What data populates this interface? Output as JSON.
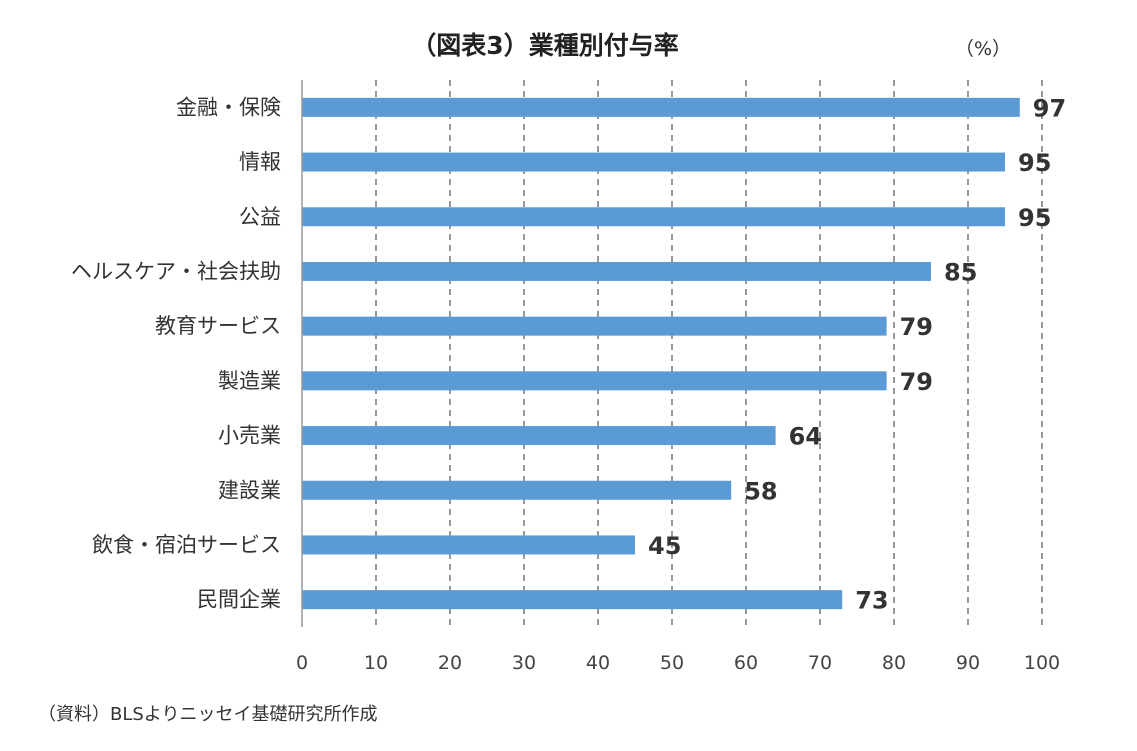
{
  "title": "（図表3）業種別付与率",
  "unit": "（%）",
  "source": "（資料）BLSよりニッセイ基礎研究所作成",
  "colors": {
    "bar": "#5b9bd5",
    "grid": "#555555",
    "axis": "#999999"
  },
  "chart_data": {
    "type": "bar",
    "orientation": "horizontal",
    "categories": [
      "金融・保険",
      "情報",
      "公益",
      "ヘルスケア・社会扶助",
      "教育サービス",
      "製造業",
      "小売業",
      "建設業",
      "飲食・宿泊サービス",
      "民間企業"
    ],
    "values": [
      97,
      95,
      95,
      85,
      79,
      79,
      64,
      58,
      45,
      73
    ],
    "xlim": [
      0,
      100
    ],
    "xticks": [
      0,
      10,
      20,
      30,
      40,
      50,
      60,
      70,
      80,
      90,
      100
    ],
    "grid": "vertical-dashed",
    "legend": "none"
  }
}
